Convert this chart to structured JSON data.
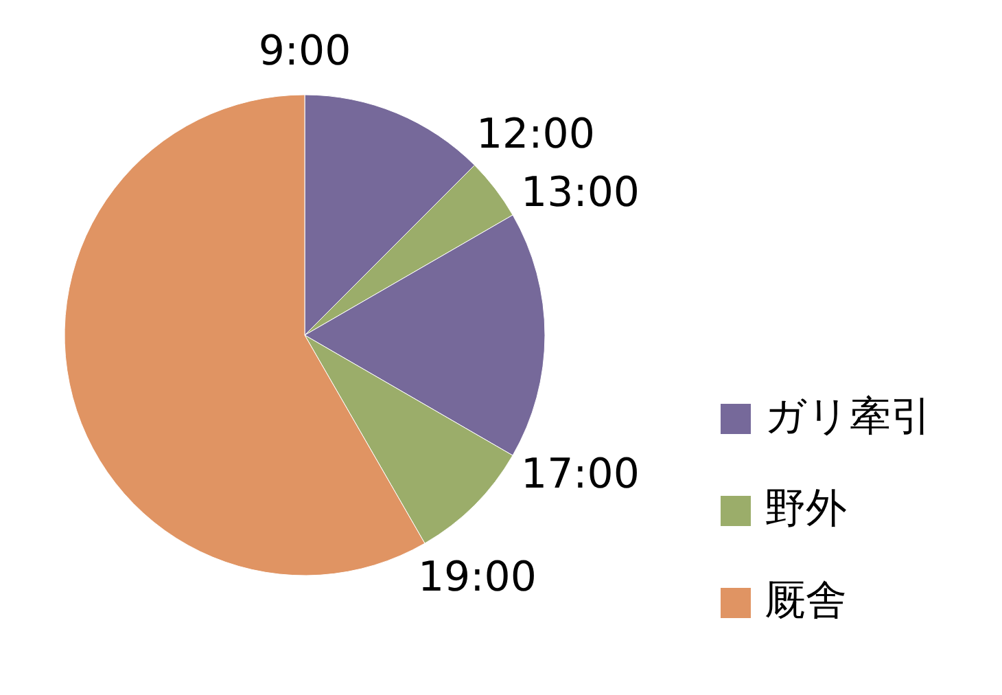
{
  "chart_data": {
    "type": "pie",
    "categories": [
      "ガリ牽引",
      "野外",
      null,
      null,
      "厩舎"
    ],
    "values": [
      12.5,
      4.17,
      16.67,
      8.33,
      58.33
    ],
    "colors": [
      "#76699a",
      "#9bad6a",
      "#76699a",
      "#9bad6a",
      "#e09463"
    ],
    "annotations": [
      "9:00",
      "12:00",
      "13:00",
      "17:00",
      "19:00"
    ],
    "legend": "right"
  }
}
